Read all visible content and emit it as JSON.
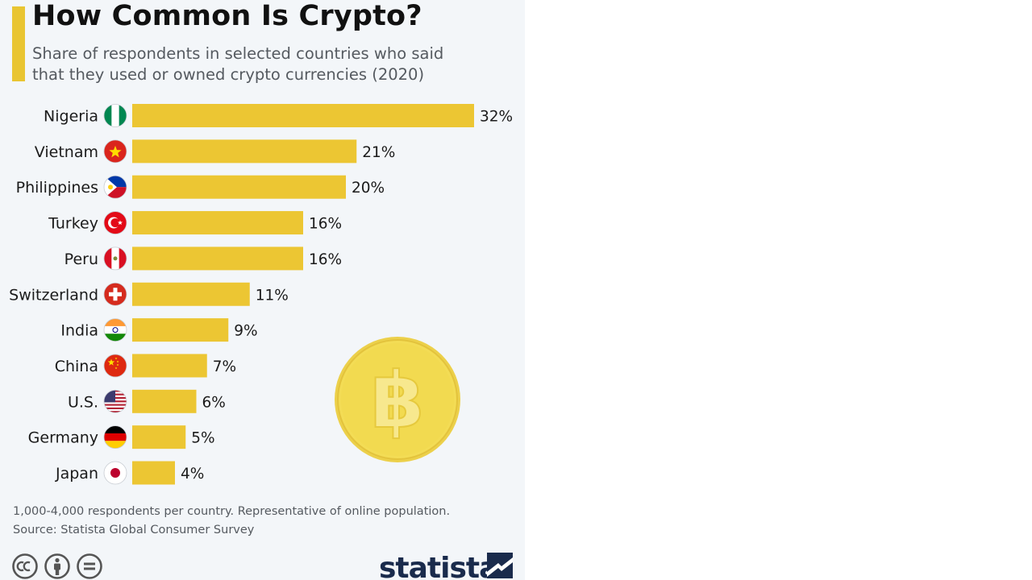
{
  "title": "How Common Is Crypto?",
  "subtitle_lines": [
    "Share of respondents in selected countries who said",
    "that they used or owned crypto currencies (2020)"
  ],
  "colors": {
    "accent": "#e9c532",
    "bar": "#ecc633",
    "background": "#f3f6f9",
    "coin": "#f1d84a"
  },
  "chart_data": {
    "type": "bar",
    "orientation": "horizontal",
    "categories": [
      "Nigeria",
      "Vietnam",
      "Philippines",
      "Turkey",
      "Peru",
      "Switzerland",
      "India",
      "China",
      "U.S.",
      "Germany",
      "Japan"
    ],
    "values": [
      32,
      21,
      20,
      16,
      16,
      11,
      9,
      7,
      6,
      5,
      4
    ],
    "value_labels": [
      "32%",
      "21%",
      "20%",
      "16%",
      "16%",
      "11%",
      "9%",
      "7%",
      "6%",
      "5%",
      "4%"
    ],
    "unit": "%",
    "xlim": [
      0,
      32
    ],
    "grid": false,
    "flag_icons": [
      "nigeria-flag-icon",
      "vietnam-flag-icon",
      "philippines-flag-icon",
      "turkey-flag-icon",
      "peru-flag-icon",
      "switzerland-flag-icon",
      "india-flag-icon",
      "china-flag-icon",
      "us-flag-icon",
      "germany-flag-icon",
      "japan-flag-icon"
    ]
  },
  "decoration": {
    "icon": "bitcoin-coin-icon"
  },
  "footnote_lines": [
    "1,000-4,000 respondents per country. Representative of online population.",
    "Source: Statista Global Consumer Survey"
  ],
  "license_icons": [
    "cc-icon",
    "attribution-icon",
    "no-derivatives-icon"
  ],
  "brand": "statista"
}
